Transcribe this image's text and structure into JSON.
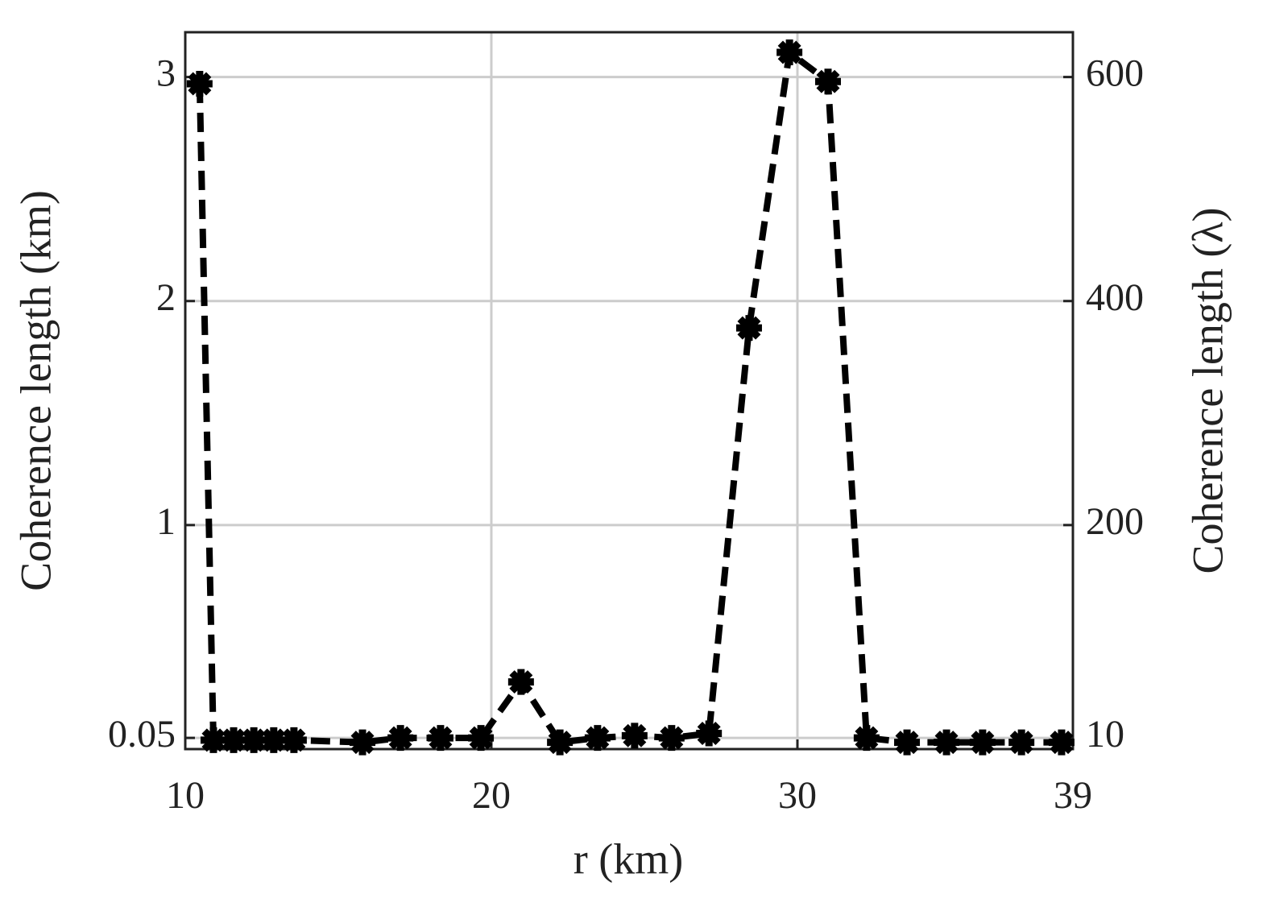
{
  "chart_data": {
    "type": "line",
    "xlabel": "r (km)",
    "ylabel": "Coherence length (km)",
    "y2label": "Coherence length (λ)",
    "xlim": [
      10,
      39
    ],
    "xticks": [
      10,
      20,
      30,
      39
    ],
    "ylim": [
      0,
      3.2
    ],
    "yticks": [
      0.05,
      1,
      2,
      3
    ],
    "y2lim": [
      0,
      640
    ],
    "y2ticks": [
      10,
      200,
      400,
      600
    ],
    "grid": true,
    "series": [
      {
        "color": "#000000",
        "x": [
          10.47,
          10.92,
          11.58,
          12.24,
          12.89,
          13.55,
          15.79,
          17.03,
          18.34,
          19.66,
          20.97,
          22.24,
          23.47,
          24.68,
          25.89,
          27.11,
          28.42,
          29.74,
          31.0,
          32.26,
          33.58,
          34.87,
          36.05,
          37.32,
          38.63
        ],
        "values": [
          2.97,
          0.04,
          0.04,
          0.04,
          0.04,
          0.04,
          0.03,
          0.05,
          0.05,
          0.05,
          0.3,
          0.03,
          0.05,
          0.06,
          0.05,
          0.07,
          1.88,
          3.11,
          2.98,
          0.05,
          0.03,
          0.03,
          0.03,
          0.03,
          0.03
        ]
      }
    ]
  }
}
